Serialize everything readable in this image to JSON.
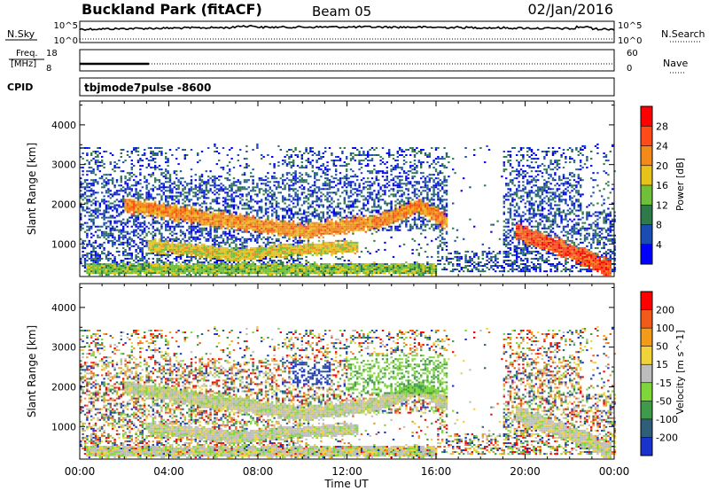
{
  "header": {
    "station": "Buckland Park (fitACF)",
    "beam": "Beam 05",
    "date": "02/Jan/2016"
  },
  "strip_panels": {
    "nsky": {
      "label": "N.Sky",
      "tick_top": "10^5",
      "tick_bottom": "10^0",
      "right_label": "N.Search",
      "right_top": "10^5",
      "right_bottom": "10^0"
    },
    "freq": {
      "label_line1": "Freq.",
      "label_line2": "[MHz]",
      "tick_top": "18",
      "tick_bottom": "8",
      "right_label": "Nave",
      "right_top": "60",
      "right_bottom": "0"
    },
    "cpid": {
      "label": "CPID",
      "value": "tbjmode7pulse  -8600"
    }
  },
  "chart_data": [
    {
      "type": "heatmap",
      "name": "power",
      "ylabel": "Slant Range [km]",
      "xlabel": "",
      "x_ticks": [
        "00:00",
        "04:00",
        "08:00",
        "12:00",
        "16:00",
        "20:00",
        "00:00"
      ],
      "y_ticks": [
        1000,
        2000,
        3000,
        4000
      ],
      "xlim_hours": [
        0,
        24
      ],
      "ylim": [
        180,
        4600
      ],
      "colorbar": {
        "label": "Power [dB]",
        "ticks": [
          "28",
          "24",
          "20",
          "16",
          "12",
          "8",
          "4"
        ],
        "colors": [
          "#0000ff",
          "#1a4db3",
          "#2f7a4a",
          "#6fbf3a",
          "#e6c21a",
          "#f28a1a",
          "#ff4a1a",
          "#ff0000"
        ]
      },
      "bands": [
        {
          "t": [
            2.0,
            6.0,
            10.0,
            13.5,
            15.2,
            16.5
          ],
          "r": [
            1950,
            1600,
            1300,
            1550,
            1950,
            1500
          ],
          "w": 180,
          "level": 5
        },
        {
          "t": [
            3.0,
            7.0,
            10.0,
            12.5
          ],
          "r": [
            950,
            700,
            850,
            900
          ],
          "w": 150,
          "level": 4
        },
        {
          "t": [
            0.2,
            6.0,
            12.0,
            16.0
          ],
          "r": [
            350,
            350,
            350,
            350
          ],
          "w": 140,
          "level": 3
        },
        {
          "t": [
            19.5,
            21.5,
            22.8,
            23.8
          ],
          "r": [
            1300,
            900,
            600,
            350
          ],
          "w": 200,
          "level": 6
        }
      ]
    },
    {
      "type": "heatmap",
      "name": "velocity",
      "ylabel": "Slant Range [km]",
      "xlabel": "Time UT",
      "x_ticks": [
        "00:00",
        "04:00",
        "08:00",
        "12:00",
        "16:00",
        "20:00",
        "00:00"
      ],
      "y_ticks": [
        1000,
        2000,
        3000,
        4000
      ],
      "xlim_hours": [
        0,
        24
      ],
      "ylim": [
        180,
        4600
      ],
      "colorbar": {
        "label": "Velocity [m s^-1]",
        "ticks": [
          "200",
          "100",
          "50",
          "15",
          "-15",
          "-50",
          "-100",
          "-200"
        ],
        "colors": [
          "#1a33cc",
          "#2e5e7a",
          "#3f9a4a",
          "#7ed63a",
          "#bdbdbd",
          "#f0d23a",
          "#f29a1a",
          "#f05a1a",
          "#ff0000"
        ]
      }
    }
  ]
}
